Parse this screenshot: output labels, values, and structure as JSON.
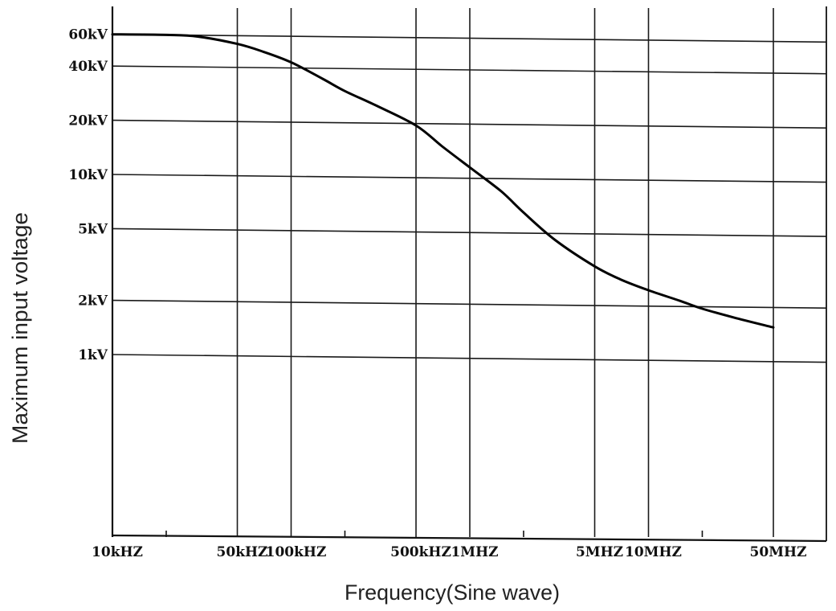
{
  "chart_data": {
    "type": "line",
    "title": "",
    "xlabel": "Frequency(Sine wave)",
    "ylabel": "Maximum input voltage",
    "x_scale": "log",
    "y_scale": "log",
    "x_unit": "Hz",
    "y_unit": "V",
    "xlim": [
      10000,
      60000000
    ],
    "ylim": [
      200,
      75000
    ],
    "grid": true,
    "x_major_ticks": [
      {
        "value": 10000,
        "label": "10kHZ"
      },
      {
        "value": 50000,
        "label": "50kHZ"
      },
      {
        "value": 100000,
        "label": "100kHZ"
      },
      {
        "value": 500000,
        "label": "500kHZ"
      },
      {
        "value": 1000000,
        "label": "1MHZ"
      },
      {
        "value": 5000000,
        "label": "5MHZ"
      },
      {
        "value": 10000000,
        "label": "10MHZ"
      },
      {
        "value": 50000000,
        "label": "50MHZ"
      }
    ],
    "x_minor_ticks": [
      20000,
      200000,
      2000000,
      20000000
    ],
    "y_ticks": [
      {
        "value": 60000,
        "label": "60kV"
      },
      {
        "value": 40000,
        "label": "40kV"
      },
      {
        "value": 20000,
        "label": "20kV"
      },
      {
        "value": 10000,
        "label": "10kV"
      },
      {
        "value": 5000,
        "label": "5kV"
      },
      {
        "value": 2000,
        "label": "2kV"
      },
      {
        "value": 1000,
        "label": "1kV"
      }
    ],
    "series": [
      {
        "x": [
          10000,
          20000,
          30000,
          50000,
          70000,
          100000,
          150000,
          200000,
          300000,
          500000,
          700000,
          1000000,
          1500000,
          2000000,
          3000000,
          5000000,
          7000000,
          10000000,
          15000000,
          20000000,
          30000000,
          50000000
        ],
        "values": [
          60000,
          60000,
          59000,
          54000,
          49000,
          43000,
          35000,
          30000,
          25000,
          19500,
          15000,
          11500,
          8500,
          6500,
          4600,
          3300,
          2800,
          2450,
          2150,
          1950,
          1750,
          1550
        ]
      }
    ]
  }
}
